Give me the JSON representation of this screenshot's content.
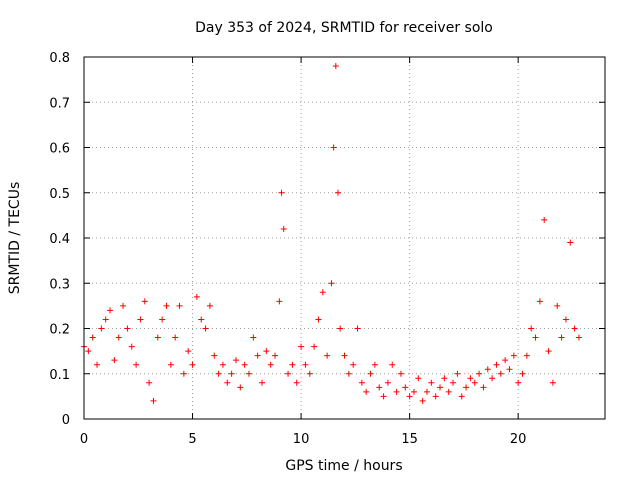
{
  "chart_data": {
    "type": "scatter",
    "title": "Day 353 of 2024, SRMTID for receiver solo",
    "xlabel": "GPS time / hours",
    "ylabel": "SRMTID / TECUs",
    "xlim": [
      0,
      24
    ],
    "ylim": [
      0,
      0.8
    ],
    "xticks": [
      0,
      5,
      10,
      15,
      20
    ],
    "yticks": [
      0,
      0.1,
      0.2,
      0.3,
      0.4,
      0.5,
      0.6,
      0.7,
      0.8
    ],
    "xtick_labels": [
      "0",
      "5",
      "10",
      "15",
      "20"
    ],
    "ytick_labels": [
      "0",
      "0.1",
      "0.2",
      "0.3",
      "0.4",
      "0.5",
      "0.6",
      "0.7",
      "0.8"
    ],
    "grid": true,
    "marker": "+",
    "color": "#ff0000",
    "series": [
      {
        "name": "SRMTID",
        "x": [
          0.0,
          0.2,
          0.4,
          0.6,
          0.8,
          1.0,
          1.2,
          1.4,
          1.6,
          1.8,
          2.0,
          2.2,
          2.4,
          2.6,
          2.8,
          3.0,
          3.2,
          3.4,
          3.6,
          3.8,
          4.0,
          4.2,
          4.4,
          4.6,
          4.8,
          5.0,
          5.2,
          5.4,
          5.6,
          5.8,
          6.0,
          6.2,
          6.4,
          6.6,
          6.8,
          7.0,
          7.2,
          7.4,
          7.6,
          7.8,
          8.0,
          8.2,
          8.4,
          8.6,
          8.8,
          9.0,
          9.1,
          9.2,
          9.4,
          9.6,
          9.8,
          10.0,
          10.2,
          10.4,
          10.6,
          10.8,
          11.0,
          11.2,
          11.4,
          11.5,
          11.6,
          11.7,
          11.8,
          12.0,
          12.2,
          12.4,
          12.6,
          12.8,
          13.0,
          13.2,
          13.4,
          13.6,
          13.8,
          14.0,
          14.2,
          14.4,
          14.6,
          14.8,
          15.0,
          15.2,
          15.4,
          15.6,
          15.8,
          16.0,
          16.2,
          16.4,
          16.6,
          16.8,
          17.0,
          17.2,
          17.4,
          17.6,
          17.8,
          18.0,
          18.2,
          18.4,
          18.6,
          18.8,
          19.0,
          19.2,
          19.4,
          19.6,
          19.8,
          20.0,
          20.2,
          20.4,
          20.6,
          20.8,
          21.0,
          21.2,
          21.4,
          21.6,
          21.8,
          22.0,
          22.2,
          22.4,
          22.6,
          22.8
        ],
        "y": [
          0.16,
          0.15,
          0.18,
          0.12,
          0.2,
          0.22,
          0.24,
          0.13,
          0.18,
          0.25,
          0.2,
          0.16,
          0.12,
          0.22,
          0.26,
          0.08,
          0.04,
          0.18,
          0.22,
          0.25,
          0.12,
          0.18,
          0.25,
          0.1,
          0.15,
          0.12,
          0.27,
          0.22,
          0.2,
          0.25,
          0.14,
          0.1,
          0.12,
          0.08,
          0.1,
          0.13,
          0.07,
          0.12,
          0.1,
          0.18,
          0.14,
          0.08,
          0.15,
          0.12,
          0.14,
          0.26,
          0.5,
          0.42,
          0.1,
          0.12,
          0.08,
          0.16,
          0.12,
          0.1,
          0.16,
          0.22,
          0.28,
          0.14,
          0.3,
          0.6,
          0.78,
          0.5,
          0.2,
          0.14,
          0.1,
          0.12,
          0.2,
          0.08,
          0.06,
          0.1,
          0.12,
          0.07,
          0.05,
          0.08,
          0.12,
          0.06,
          0.1,
          0.07,
          0.05,
          0.06,
          0.09,
          0.04,
          0.06,
          0.08,
          0.05,
          0.07,
          0.09,
          0.06,
          0.08,
          0.1,
          0.05,
          0.07,
          0.09,
          0.08,
          0.1,
          0.07,
          0.11,
          0.09,
          0.12,
          0.1,
          0.13,
          0.11,
          0.14,
          0.08,
          0.1,
          0.14,
          0.2,
          0.18,
          0.26,
          0.44,
          0.15,
          0.08,
          0.25,
          0.18,
          0.22,
          0.39,
          0.2,
          0.18
        ]
      }
    ]
  }
}
